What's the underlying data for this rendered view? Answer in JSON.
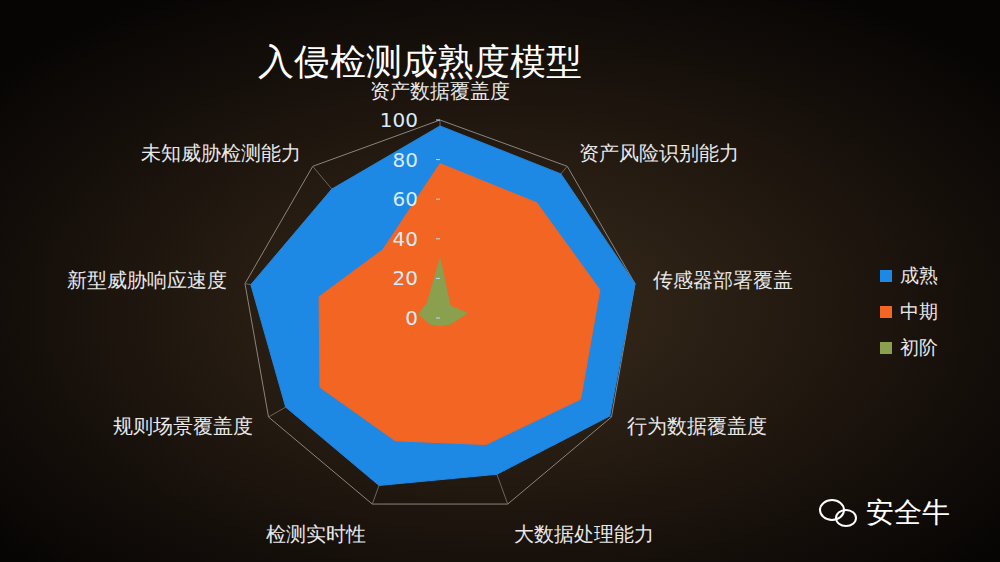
{
  "chart_data": {
    "type": "radar",
    "title": "入侵检测成熟度模型",
    "categories": [
      "资产数据覆盖度",
      "资产风险识别能力",
      "传感器部署覆盖",
      "行为数据覆盖度",
      "大数据处理能力",
      "检测实时性",
      "规则场景覆盖度",
      "新型威胁响应速度",
      "未知威胁检测能力"
    ],
    "series": [
      {
        "name": "成熟",
        "color": "#1e88e5",
        "values": [
          97,
          95,
          100,
          99,
          84,
          90,
          90,
          97,
          85
        ]
      },
      {
        "name": "中期",
        "color": "#f26522",
        "values": [
          78,
          76,
          82,
          82,
          68,
          66,
          70,
          62,
          45
        ]
      },
      {
        "name": "初阶",
        "color": "#8aa04f",
        "values": [
          30,
          8,
          14,
          6,
          4,
          4,
          6,
          11,
          10
        ]
      }
    ],
    "ylim": [
      0,
      100
    ],
    "yticks": [
      0,
      20,
      40,
      60,
      80,
      100
    ],
    "grid": true,
    "legend": "right",
    "annotations": [
      "安全牛"
    ]
  }
}
